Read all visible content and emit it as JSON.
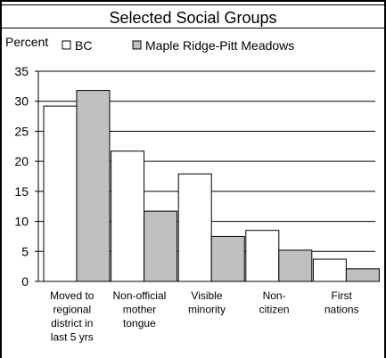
{
  "chart_data": {
    "type": "bar",
    "title": "Selected Social Groups",
    "ylabel": "Percent",
    "ylim": [
      0,
      35
    ],
    "yticks": [
      0,
      5,
      10,
      15,
      20,
      25,
      30,
      35
    ],
    "grid": true,
    "legend_position": "top",
    "categories": [
      [
        "Moved to",
        "regional",
        "district in",
        "last 5 yrs"
      ],
      [
        "Non-official",
        "mother",
        "tongue"
      ],
      [
        "Visible",
        "minority"
      ],
      [
        "Non-",
        "citizen"
      ],
      [
        "First",
        "nations"
      ]
    ],
    "series": [
      {
        "name": "BC",
        "color": "#ffffff",
        "values": [
          29.2,
          21.7,
          17.9,
          8.5,
          3.7
        ]
      },
      {
        "name": "Maple Ridge-Pitt Meadows",
        "color": "#c0c0c0",
        "values": [
          31.8,
          11.7,
          7.5,
          5.2,
          2.1
        ]
      }
    ]
  }
}
